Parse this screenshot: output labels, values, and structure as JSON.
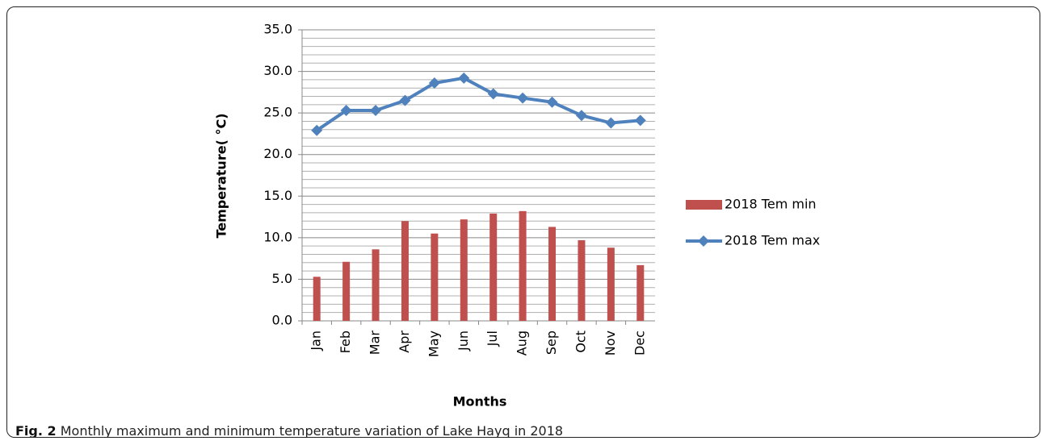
{
  "chart_data": {
    "type": "bar-line",
    "y_label": "Temperature( °C)",
    "x_label": "Months",
    "categories": [
      "Jan",
      "Feb",
      "Mar",
      "Apr",
      "May",
      "Jun",
      "Jul",
      "Aug",
      "Sep",
      "Oct",
      "Nov",
      "Dec"
    ],
    "series": [
      {
        "name": "2018 Tem min",
        "type": "bar",
        "color": "#c0504d",
        "values": [
          5.3,
          7.1,
          8.6,
          12.0,
          10.5,
          12.2,
          12.9,
          13.2,
          11.3,
          9.7,
          8.8,
          6.7
        ]
      },
      {
        "name": "2018 Tem max",
        "type": "line",
        "color": "#4f81bd",
        "values": [
          22.9,
          25.3,
          25.3,
          26.5,
          28.6,
          29.2,
          27.3,
          26.8,
          26.3,
          24.7,
          23.8,
          24.1
        ]
      }
    ],
    "ylim": [
      0,
      35
    ],
    "yticks": [
      {
        "value": 0,
        "label": "0.0"
      },
      {
        "value": 5,
        "label": "5.0"
      },
      {
        "value": 10,
        "label": "10.0"
      },
      {
        "value": 15,
        "label": "15.0"
      },
      {
        "value": 20,
        "label": "20.0"
      },
      {
        "value": 25,
        "label": "25.0"
      },
      {
        "value": 30,
        "label": "30.0"
      },
      {
        "value": 35,
        "label": "35.0"
      }
    ],
    "grid": true,
    "legend": "right"
  },
  "caption": {
    "label": "Fig. 2",
    "text": "Monthly maximum and minimum temperature variation of Lake Hayq in 2018"
  }
}
